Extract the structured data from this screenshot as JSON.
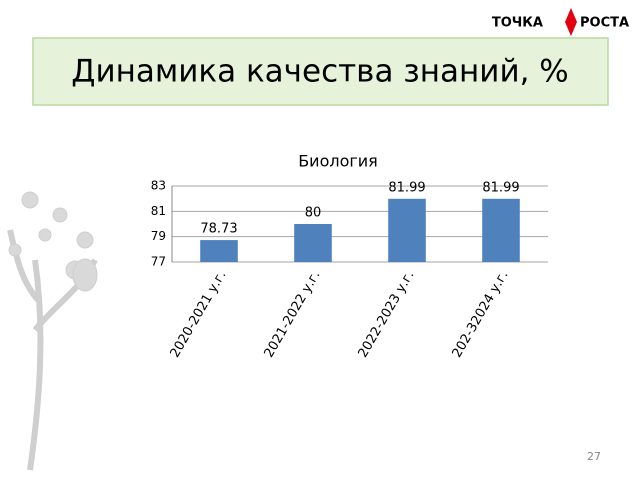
{
  "slide_title": "Динамика качества знаний, %",
  "logo": {
    "left": "ТОЧКА",
    "right": "РОСТА"
  },
  "page_number": "27",
  "chart_data": {
    "type": "bar",
    "title": "Биология",
    "categories": [
      "2020-2021 у.г.",
      "2021-2022 у.г.",
      "2022-2023 у.г.",
      "202-32024 у.г."
    ],
    "values": [
      78.73,
      80,
      81.99,
      81.99
    ],
    "color": "#4f81bd",
    "ylim": [
      77,
      83
    ],
    "yticks": [
      77,
      79,
      81,
      83
    ],
    "grid": true
  }
}
